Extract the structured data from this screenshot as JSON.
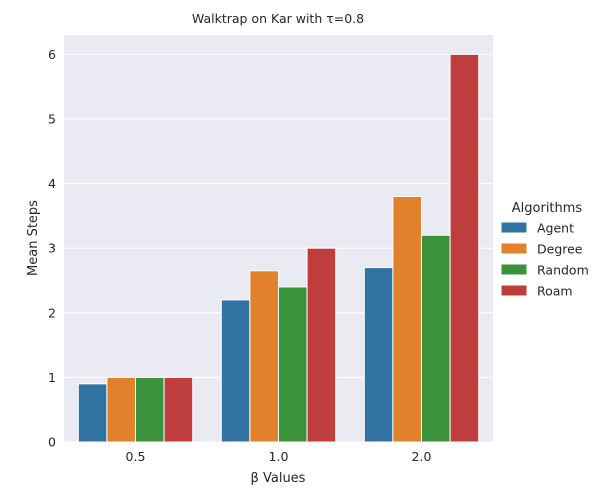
{
  "chart_data": {
    "type": "bar",
    "title": "Walktrap on Kar with τ=0.8",
    "xlabel": "β Values",
    "ylabel": "Mean Steps",
    "categories": [
      "0.5",
      "1.0",
      "2.0"
    ],
    "ylim": [
      0,
      6.3
    ],
    "yticks": [
      0,
      1,
      2,
      3,
      4,
      5,
      6
    ],
    "grid": true,
    "legend_title": "Algorithms",
    "legend_position": "right",
    "series": [
      {
        "name": "Agent",
        "color": "#3274a1",
        "values": [
          0.9,
          2.2,
          2.7
        ]
      },
      {
        "name": "Degree",
        "color": "#e1812c",
        "values": [
          1.0,
          2.65,
          3.8
        ]
      },
      {
        "name": "Random",
        "color": "#3a923a",
        "values": [
          1.0,
          2.4,
          3.2
        ]
      },
      {
        "name": "Roam",
        "color": "#c03d3e",
        "values": [
          1.0,
          3.0,
          6.0
        ]
      }
    ],
    "style": {
      "plot_bg": "#eaeaf2",
      "grid_color": "#ffffff"
    }
  }
}
